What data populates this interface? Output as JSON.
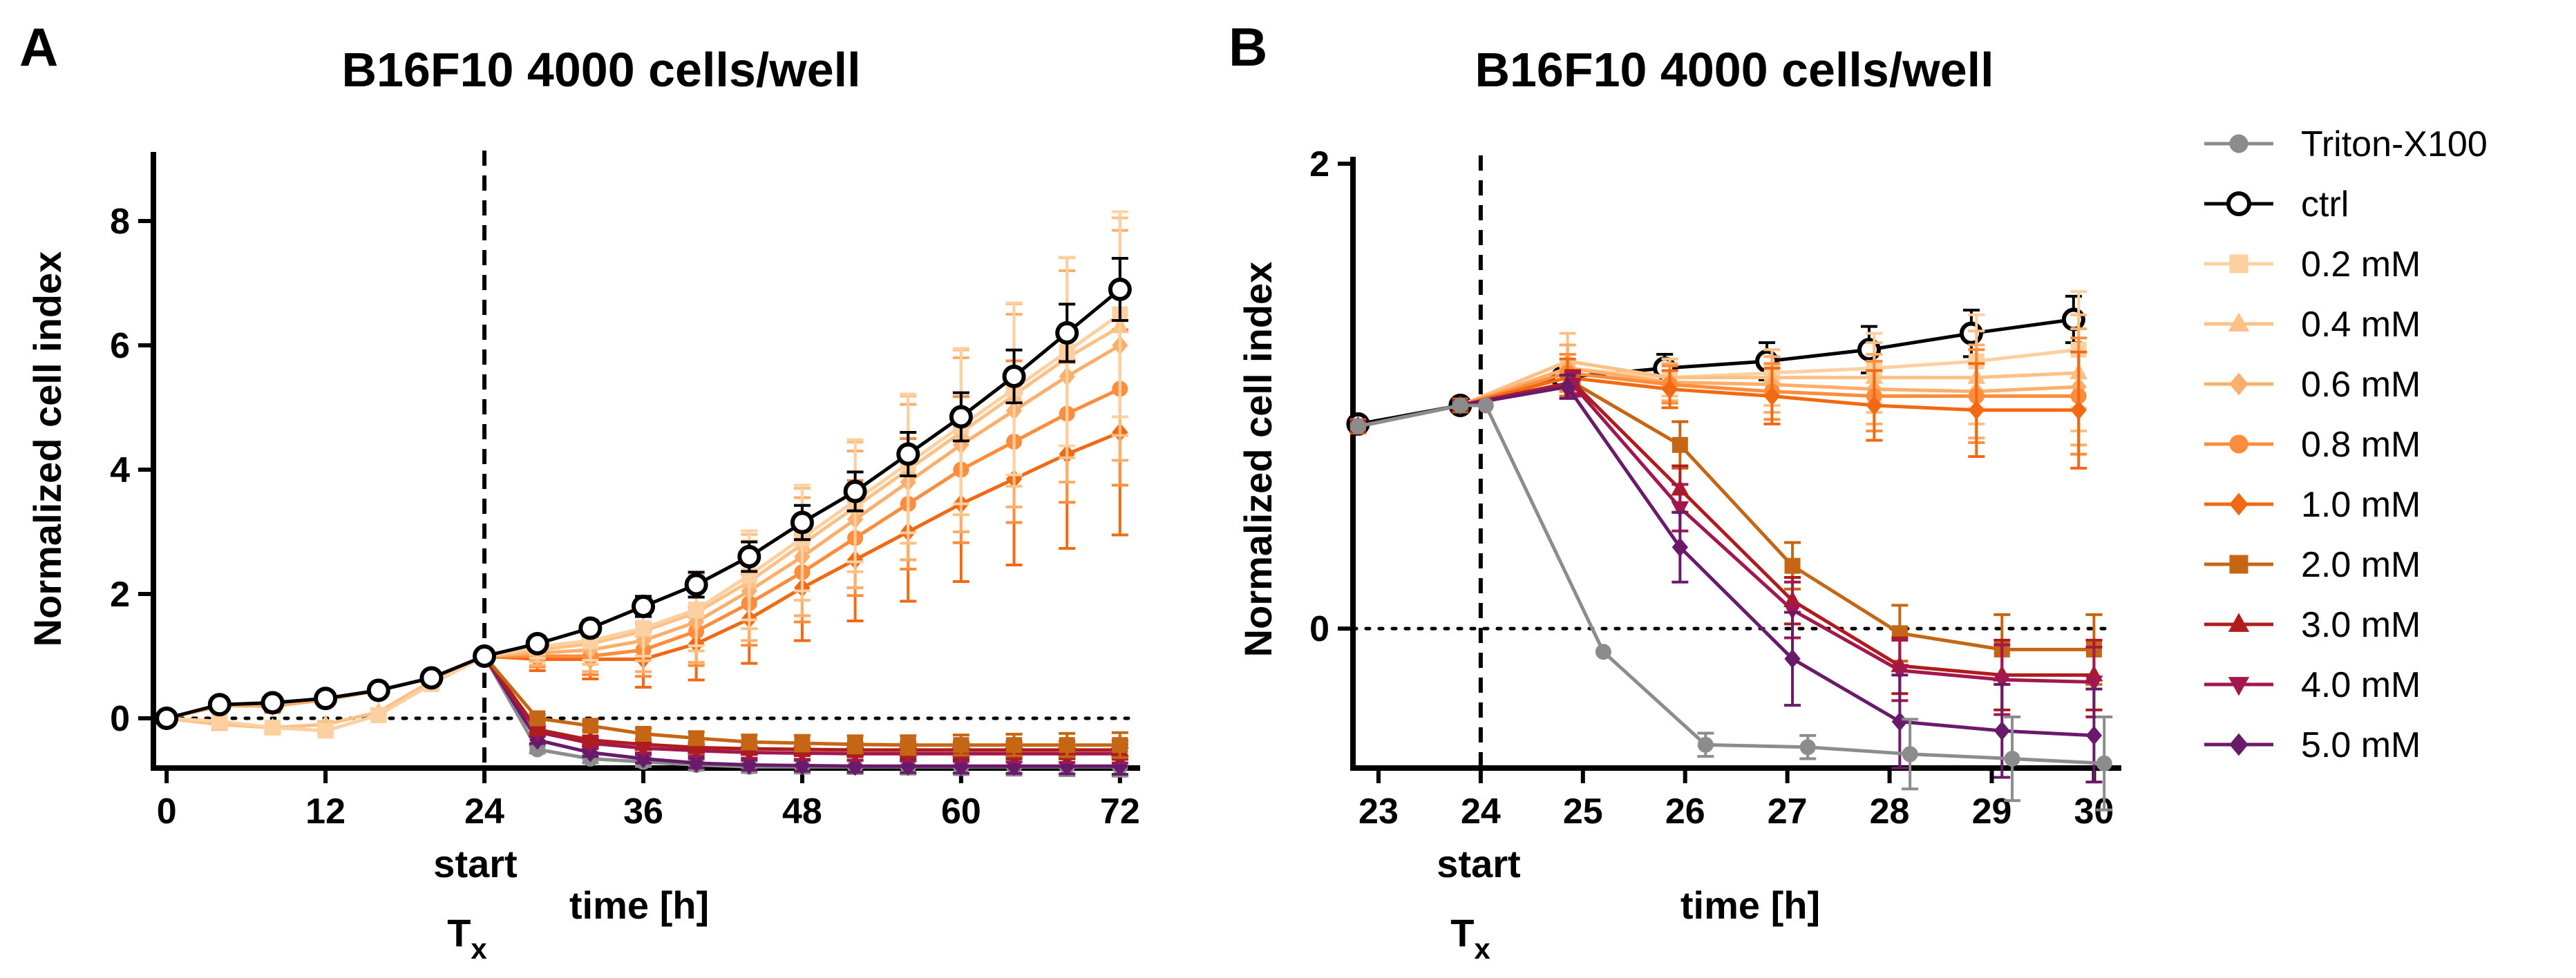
{
  "chart_data": [
    {
      "panel_label": "A",
      "type": "line",
      "title": "B16F10 4000 cells/well",
      "xlabel": "time [h]",
      "ylabel": "Normalized cell index",
      "start_label": "start",
      "tx_base": "T",
      "tx_sub": "x",
      "xlim": [
        -1,
        73
      ],
      "ylim": [
        -0.8,
        9.0
      ],
      "xticks": [
        0,
        12,
        24,
        36,
        48,
        60,
        72
      ],
      "yticks": [
        0,
        2,
        4,
        6,
        8
      ],
      "treatment_x": 24,
      "zero_line": 0,
      "x_pre": [
        0,
        4,
        8,
        12,
        16,
        20,
        24
      ],
      "x_post": [
        28,
        32,
        36,
        40,
        44,
        48,
        52,
        56,
        60,
        64,
        68,
        72
      ],
      "series": [
        {
          "name": "Triton-X100",
          "pre": [
            0.0,
            0.2,
            0.2,
            0.3,
            0.45,
            0.65,
            1.0
          ],
          "post": [
            -0.5,
            -0.65,
            -0.7,
            -0.75,
            -0.78,
            -0.78,
            -0.78,
            -0.78,
            -0.78,
            -0.78,
            -0.78,
            -0.78
          ],
          "err": 0.1
        },
        {
          "name": "5.0 mM",
          "pre": [
            0.0,
            0.2,
            0.2,
            0.3,
            0.45,
            0.65,
            1.0
          ],
          "post": [
            -0.35,
            -0.55,
            -0.65,
            -0.72,
            -0.75,
            -0.76,
            -0.77,
            -0.77,
            -0.77,
            -0.77,
            -0.77,
            -0.77
          ],
          "err": 0.08
        },
        {
          "name": "4.0 mM",
          "pre": [
            0.0,
            0.2,
            0.2,
            0.3,
            0.45,
            0.65,
            1.0
          ],
          "post": [
            -0.22,
            -0.4,
            -0.48,
            -0.52,
            -0.55,
            -0.56,
            -0.57,
            -0.57,
            -0.57,
            -0.57,
            -0.57,
            -0.57
          ],
          "err": 0.1
        },
        {
          "name": "3.0 mM",
          "pre": [
            0.0,
            0.2,
            0.2,
            0.3,
            0.45,
            0.65,
            1.0
          ],
          "post": [
            -0.18,
            -0.35,
            -0.42,
            -0.47,
            -0.49,
            -0.5,
            -0.51,
            -0.51,
            -0.51,
            -0.51,
            -0.51,
            -0.51
          ],
          "err": 0.1
        },
        {
          "name": "2.0 mM",
          "pre": [
            0.0,
            0.2,
            0.2,
            0.3,
            0.45,
            0.65,
            1.0
          ],
          "post": [
            0.0,
            -0.12,
            -0.25,
            -0.32,
            -0.38,
            -0.4,
            -0.42,
            -0.43,
            -0.43,
            -0.43,
            -0.43,
            -0.43
          ],
          "err": 0.15
        },
        {
          "name": "1.0 mM",
          "pre": [
            0.0,
            0.2,
            0.2,
            0.3,
            0.45,
            0.65,
            1.0
          ],
          "post": [
            0.95,
            0.95,
            0.95,
            1.2,
            1.6,
            2.1,
            2.55,
            3.0,
            3.45,
            3.85,
            4.25,
            4.6
          ],
          "err": 1.6
        },
        {
          "name": "0.8 mM",
          "pre": [
            0.0,
            0.2,
            0.2,
            0.3,
            0.45,
            0.65,
            1.0
          ],
          "post": [
            1.0,
            1.0,
            1.1,
            1.4,
            1.85,
            2.35,
            2.9,
            3.45,
            4.0,
            4.45,
            4.9,
            5.3
          ],
          "err": 1.5
        },
        {
          "name": "0.6 mM",
          "pre": [
            0.0,
            0.2,
            0.2,
            0.3,
            0.45,
            0.65,
            1.0
          ],
          "post": [
            1.05,
            1.1,
            1.25,
            1.55,
            2.05,
            2.6,
            3.2,
            3.8,
            4.4,
            4.95,
            5.5,
            6.0
          ],
          "err": 1.8
        },
        {
          "name": "0.4 mM",
          "pre": [
            0.0,
            -0.1,
            -0.15,
            -0.1,
            0.1,
            0.6,
            1.0
          ],
          "post": [
            1.1,
            1.2,
            1.4,
            1.7,
            2.2,
            2.8,
            3.4,
            4.0,
            4.6,
            5.2,
            5.8,
            6.3
          ],
          "err": 1.7
        },
        {
          "name": "0.2 mM",
          "pre": [
            0.0,
            -0.05,
            -0.15,
            -0.2,
            0.05,
            0.55,
            1.0
          ],
          "post": [
            1.15,
            1.25,
            1.45,
            1.75,
            2.3,
            2.9,
            3.5,
            4.1,
            4.7,
            5.3,
            5.9,
            6.5
          ],
          "err": 1.6
        },
        {
          "name": "ctrl",
          "pre": [
            0.0,
            0.22,
            0.25,
            0.32,
            0.45,
            0.65,
            1.0
          ],
          "post": [
            1.2,
            1.45,
            1.8,
            2.15,
            2.6,
            3.15,
            3.65,
            4.25,
            4.85,
            5.5,
            6.2,
            6.9
          ],
          "err": 0.45
        }
      ]
    },
    {
      "panel_label": "B",
      "type": "line",
      "title": "B16F10 4000 cells/well",
      "xlabel": "time [h]",
      "ylabel": "Normalized cell index",
      "start_label": "start",
      "tx_base": "T",
      "tx_sub": "x",
      "xlim": [
        22.75,
        30.2
      ],
      "ylim": [
        -0.6,
        2.0
      ],
      "xticks": [
        23,
        24,
        25,
        26,
        27,
        28,
        29,
        30
      ],
      "yticks": [
        0,
        2
      ],
      "treatment_x": 24,
      "zero_line": 0,
      "series": [
        {
          "name": "ctrl",
          "x": [
            22.8,
            23.8,
            24.8,
            25.8,
            26.8,
            27.8,
            28.8,
            29.8
          ],
          "y": [
            0.88,
            0.96,
            1.08,
            1.12,
            1.15,
            1.2,
            1.27,
            1.33
          ],
          "err": [
            0.02,
            0.02,
            0.03,
            0.06,
            0.08,
            0.1,
            0.1,
            0.1
          ]
        },
        {
          "name": "0.2 mM",
          "x": [
            22.8,
            23.8,
            24.85,
            25.85,
            26.85,
            27.85,
            28.85,
            29.85
          ],
          "y": [
            0.87,
            0.96,
            1.12,
            1.08,
            1.1,
            1.12,
            1.15,
            1.2
          ],
          "err": [
            0.02,
            0.02,
            0.1,
            0.08,
            0.1,
            0.15,
            0.2,
            0.25
          ]
        },
        {
          "name": "0.4 mM",
          "x": [
            22.8,
            23.8,
            24.85,
            25.85,
            26.85,
            27.85,
            28.85,
            29.85
          ],
          "y": [
            0.87,
            0.96,
            1.15,
            1.08,
            1.08,
            1.08,
            1.08,
            1.1
          ],
          "err": [
            0.02,
            0.02,
            0.12,
            0.08,
            0.12,
            0.15,
            0.2,
            0.25
          ]
        },
        {
          "name": "0.6 mM",
          "x": [
            22.8,
            23.8,
            24.85,
            25.85,
            26.85,
            27.85,
            28.85,
            29.85
          ],
          "y": [
            0.87,
            0.96,
            1.12,
            1.06,
            1.05,
            1.03,
            1.02,
            1.04
          ],
          "err": [
            0.02,
            0.02,
            0.1,
            0.08,
            0.12,
            0.15,
            0.2,
            0.25
          ]
        },
        {
          "name": "0.8 mM",
          "x": [
            22.8,
            23.8,
            24.85,
            25.85,
            26.85,
            27.85,
            28.85,
            29.85
          ],
          "y": [
            0.87,
            0.96,
            1.1,
            1.05,
            1.02,
            1.0,
            1.0,
            1.0
          ],
          "err": [
            0.02,
            0.02,
            0.08,
            0.08,
            0.12,
            0.15,
            0.2,
            0.25
          ]
        },
        {
          "name": "1.0 mM",
          "x": [
            22.8,
            23.8,
            24.85,
            25.85,
            26.85,
            27.85,
            28.85,
            29.85
          ],
          "y": [
            0.87,
            0.96,
            1.08,
            1.03,
            1.0,
            0.96,
            0.94,
            0.94
          ],
          "err": [
            0.02,
            0.02,
            0.08,
            0.08,
            0.12,
            0.15,
            0.2,
            0.25
          ]
        },
        {
          "name": "2.0 mM",
          "x": [
            22.8,
            23.8,
            24.9,
            25.95,
            27.05,
            28.1,
            29.1,
            30.0
          ],
          "y": [
            0.87,
            0.96,
            1.06,
            0.79,
            0.27,
            -0.02,
            -0.09,
            -0.09
          ],
          "err": [
            0.02,
            0.02,
            0.05,
            0.1,
            0.1,
            0.12,
            0.15,
            0.15
          ]
        },
        {
          "name": "3.0 mM",
          "x": [
            22.8,
            23.8,
            24.9,
            25.95,
            27.05,
            28.1,
            29.1,
            30.0
          ],
          "y": [
            0.87,
            0.96,
            1.06,
            0.6,
            0.12,
            -0.16,
            -0.2,
            -0.2
          ],
          "err": [
            0.02,
            0.02,
            0.05,
            0.1,
            0.1,
            0.12,
            0.15,
            0.15
          ]
        },
        {
          "name": "4.0 mM",
          "x": [
            22.8,
            23.8,
            24.9,
            25.95,
            27.05,
            28.1,
            29.1,
            30.0
          ],
          "y": [
            0.87,
            0.96,
            1.05,
            0.52,
            0.08,
            -0.18,
            -0.22,
            -0.23
          ],
          "err": [
            0.02,
            0.02,
            0.05,
            0.1,
            0.12,
            0.13,
            0.15,
            0.15
          ]
        },
        {
          "name": "5.0 mM",
          "x": [
            22.8,
            23.8,
            24.85,
            25.95,
            27.05,
            28.1,
            29.1,
            30.0
          ],
          "y": [
            0.87,
            0.96,
            1.04,
            0.35,
            -0.13,
            -0.4,
            -0.44,
            -0.46
          ],
          "err": [
            0.02,
            0.02,
            0.05,
            0.15,
            0.2,
            0.2,
            0.2,
            0.2
          ]
        },
        {
          "name": "Triton-X100",
          "x": [
            22.8,
            23.8,
            24.05,
            25.2,
            26.2,
            27.2,
            28.2,
            29.2,
            30.1
          ],
          "y": [
            0.87,
            0.96,
            0.96,
            -0.1,
            -0.5,
            -0.51,
            -0.54,
            -0.56,
            -0.58
          ],
          "err": [
            0.02,
            0.02,
            0.02,
            0.03,
            0.05,
            0.05,
            0.15,
            0.18,
            0.2
          ]
        }
      ]
    }
  ],
  "legend": {
    "position": "right",
    "entries": [
      {
        "name": "Triton-X100",
        "color": "#8c8c8c",
        "marker": "circle",
        "filled": true
      },
      {
        "name": "ctrl",
        "color": "#000000",
        "marker": "circle",
        "filled": false
      },
      {
        "name": "0.2 mM",
        "color": "#fdd0a2",
        "marker": "square",
        "filled": true
      },
      {
        "name": "0.4 mM",
        "color": "#fdc085",
        "marker": "triangle-up",
        "filled": true
      },
      {
        "name": "0.6 mM",
        "color": "#fdae6b",
        "marker": "diamond",
        "filled": true
      },
      {
        "name": "0.8 mM",
        "color": "#fd8d3c",
        "marker": "circle",
        "filled": true
      },
      {
        "name": "1.0 mM",
        "color": "#f16913",
        "marker": "diamond",
        "filled": true
      },
      {
        "name": "2.0 mM",
        "color": "#c46614",
        "marker": "square",
        "filled": true
      },
      {
        "name": "3.0 mM",
        "color": "#b01c1c",
        "marker": "triangle-up",
        "filled": true
      },
      {
        "name": "4.0 mM",
        "color": "#a3174f",
        "marker": "triangle-down",
        "filled": true
      },
      {
        "name": "5.0 mM",
        "color": "#6a1a6a",
        "marker": "diamond",
        "filled": true
      }
    ]
  }
}
